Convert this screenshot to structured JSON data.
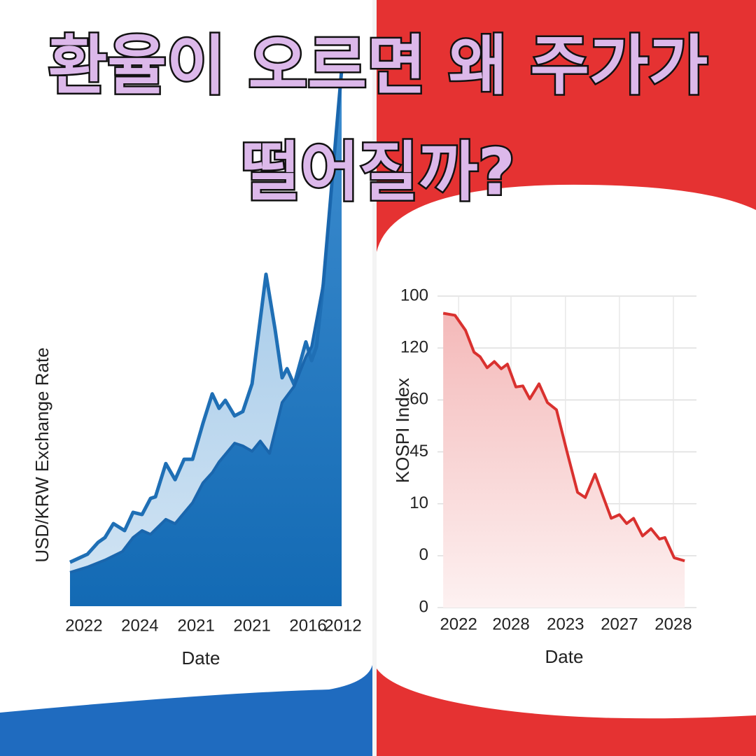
{
  "header": {
    "title": [
      "환율이 오르면 왜 주가가",
      "떨어질까?"
    ]
  },
  "chart_data": [
    {
      "type": "area",
      "y_label": "USD/KRW Exchange Rate",
      "x_label": "Date",
      "xlim": [
        0,
        100
      ],
      "ylim": [
        0,
        100
      ],
      "xticks": [
        {
          "value": 5.1,
          "label": "2022"
        },
        {
          "value": 25.6,
          "label": "2024"
        },
        {
          "value": 46.2,
          "label": "2021"
        },
        {
          "value": 66.7,
          "label": "2021"
        },
        {
          "value": 87.2,
          "label": "2016"
        },
        {
          "value": 100,
          "label": "2012"
        }
      ],
      "yticks": [],
      "series": [
        {
          "color": "#1f6fb5",
          "x": [
            0,
            6.4,
            10.3,
            12.8,
            15.9,
            20,
            23.1,
            26.4,
            29.5,
            31.3,
            35.1,
            38.5,
            41.8,
            44.9,
            48.7,
            52.1,
            54.6,
            56.9,
            60.3,
            63.3,
            66.7,
            71.8,
            75.1,
            77.7,
            79.5,
            82.1,
            86.4,
            88.5,
            90.3,
            92.8,
            96.2,
            99.5
          ],
          "values": [
            8.2,
            9.7,
            11.9,
            12.8,
            15.4,
            14.1,
            17.5,
            17.1,
            20.1,
            20.4,
            26.6,
            23.6,
            27.4,
            27.4,
            34.1,
            39.6,
            36.9,
            38.4,
            35.5,
            36.3,
            41.5,
            61.9,
            51.7,
            42.6,
            44.3,
            41.3,
            49.3,
            45.8,
            48.4,
            60.2,
            80.4,
            100
          ]
        },
        {
          "color": "#1a66ad",
          "x": [
            0,
            6.4,
            12.8,
            19.2,
            23.1,
            26.4,
            29.5,
            35.1,
            38.5,
            44.9,
            48.7,
            52.1,
            54.6,
            60.3,
            63.3,
            66.7,
            69.7,
            73.1,
            77.7,
            82.1,
            86.4,
            88.5,
            92.8,
            96.2,
            99.5
          ],
          "values": [
            6.3,
            7.3,
            8.6,
            10.2,
            12.8,
            14.1,
            13.4,
            16.2,
            15.4,
            19.3,
            23,
            24.9,
            26.9,
            30.4,
            29.9,
            28.9,
            30.8,
            28.5,
            38,
            41,
            46.5,
            48.4,
            60.2,
            80.4,
            100
          ]
        }
      ]
    },
    {
      "type": "line",
      "y_label": "KOSPI Index",
      "x_label": "Date",
      "grid": true,
      "xlim": [
        0,
        100
      ],
      "ylim": [
        0,
        6
      ],
      "xticks": [
        {
          "value": 7.4,
          "label": "2022"
        },
        {
          "value": 27.8,
          "label": "2028"
        },
        {
          "value": 49,
          "label": "2023"
        },
        {
          "value": 70,
          "label": "2027"
        },
        {
          "value": 91,
          "label": "2028"
        }
      ],
      "yticks": [
        {
          "value": 0,
          "label": "0"
        },
        {
          "value": 1,
          "label": "0"
        },
        {
          "value": 2,
          "label": "10"
        },
        {
          "value": 3,
          "label": "45"
        },
        {
          "value": 4,
          "label": "60"
        },
        {
          "value": 5,
          "label": "120"
        },
        {
          "value": 6,
          "label": "100"
        }
      ],
      "series": [
        {
          "color": "#d9312f",
          "x": [
            1.4,
            6.0,
            10.1,
            13.4,
            15.8,
            18.5,
            21.3,
            24.0,
            26.4,
            29.7,
            32.4,
            35.1,
            38.7,
            41.96,
            45.5,
            49.6,
            53.7,
            56.7,
            60.5,
            63.8,
            66.8,
            70.0,
            72.8,
            75.5,
            79.0,
            82.3,
            85.6,
            87.7,
            91.3,
            95.4
          ],
          "values": [
            5.67,
            5.63,
            5.34,
            4.92,
            4.83,
            4.62,
            4.74,
            4.6,
            4.69,
            4.25,
            4.27,
            4.02,
            4.31,
            3.95,
            3.81,
            3.0,
            2.22,
            2.12,
            2.57,
            2.12,
            1.72,
            1.79,
            1.62,
            1.72,
            1.38,
            1.52,
            1.32,
            1.35,
            0.96,
            0.9
          ]
        }
      ]
    }
  ]
}
